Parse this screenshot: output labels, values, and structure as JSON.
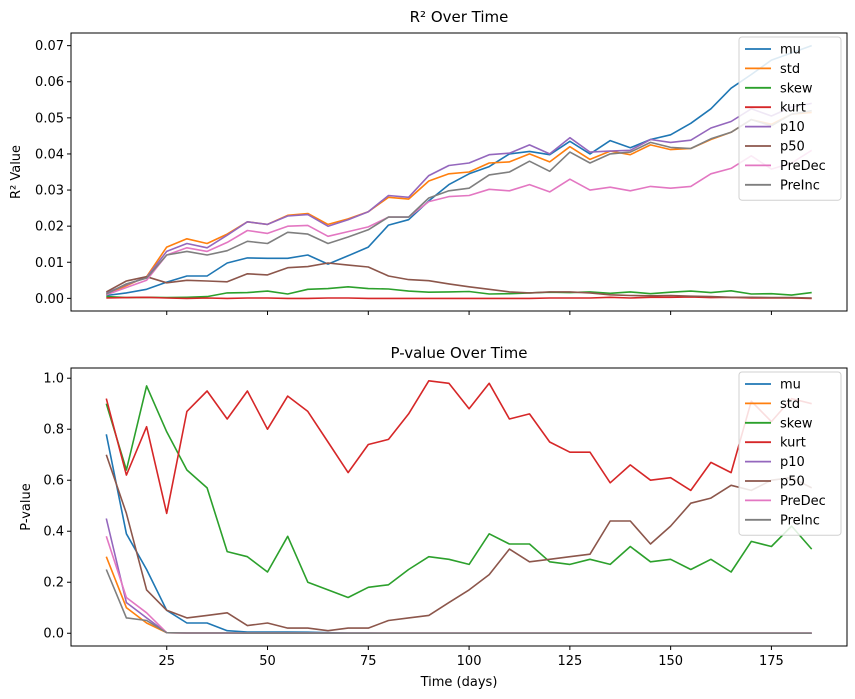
{
  "chart_data": {
    "type": "line",
    "shared_xlabel": "Time (days)",
    "x": [
      10,
      15,
      20,
      25,
      30,
      35,
      40,
      45,
      50,
      55,
      60,
      65,
      70,
      75,
      80,
      85,
      90,
      95,
      100,
      105,
      110,
      115,
      120,
      125,
      130,
      135,
      140,
      145,
      150,
      155,
      160,
      165,
      170,
      175,
      180,
      185
    ],
    "xticks": [
      25,
      50,
      75,
      100,
      125,
      150,
      175
    ],
    "xlim": [
      1.25,
      193.75
    ],
    "legend_placement": "top-right",
    "grid": false,
    "series_colors": {
      "mu": "#1f77b4",
      "std": "#ff7f0e",
      "skew": "#2ca02c",
      "kurt": "#d62728",
      "p10": "#9467bd",
      "p50": "#8c564b",
      "PreDec": "#e377c2",
      "PreInc": "#7f7f7f"
    },
    "legend_order": [
      "mu",
      "std",
      "skew",
      "kurt",
      "p10",
      "p50",
      "PreDec",
      "PreInc"
    ],
    "panels": [
      {
        "title": "R² Over Time",
        "ylabel": "R² Value",
        "ylim": [
          -0.0035,
          0.0735
        ],
        "yticks": [
          0.0,
          0.01,
          0.02,
          0.03,
          0.04,
          0.05,
          0.06,
          0.07
        ],
        "ytick_labels": [
          "0.00",
          "0.01",
          "0.02",
          "0.03",
          "0.04",
          "0.05",
          "0.06",
          "0.07"
        ],
        "series": [
          {
            "name": "mu",
            "values": [
              0.0008,
              0.0015,
              0.0025,
              0.0045,
              0.0062,
              0.0062,
              0.0098,
              0.0112,
              0.0111,
              0.0111,
              0.012,
              0.0095,
              0.0118,
              0.0142,
              0.0203,
              0.0218,
              0.027,
              0.0315,
              0.0345,
              0.0365,
              0.04,
              0.0407,
              0.0398,
              0.0435,
              0.04,
              0.0437,
              0.0417,
              0.044,
              0.0453,
              0.0485,
              0.0525,
              0.0582,
              0.062,
              0.066,
              0.068,
              0.07
            ]
          },
          {
            "name": "std",
            "values": [
              0.001,
              0.0035,
              0.006,
              0.0142,
              0.0165,
              0.0152,
              0.0178,
              0.0212,
              0.0205,
              0.023,
              0.0235,
              0.0205,
              0.022,
              0.024,
              0.028,
              0.0275,
              0.0325,
              0.0345,
              0.035,
              0.0375,
              0.0378,
              0.04,
              0.0378,
              0.042,
              0.0385,
              0.0408,
              0.0398,
              0.0425,
              0.0412,
              0.0415,
              0.044,
              0.046,
              0.0495,
              0.0482,
              0.051,
              0.0515
            ]
          },
          {
            "name": "skew",
            "values": [
              0.0005,
              0.0002,
              0.0003,
              0.0002,
              0.0003,
              0.0005,
              0.0015,
              0.0016,
              0.002,
              0.0012,
              0.0025,
              0.0027,
              0.0032,
              0.0027,
              0.0026,
              0.002,
              0.0017,
              0.0018,
              0.0019,
              0.0012,
              0.0013,
              0.0015,
              0.0017,
              0.0016,
              0.0018,
              0.0014,
              0.0018,
              0.0013,
              0.0017,
              0.002,
              0.0016,
              0.0021,
              0.0012,
              0.0013,
              0.0009,
              0.0016
            ]
          },
          {
            "name": "kurt",
            "values": [
              0.0001,
              0.0002,
              0.0003,
              0.0001,
              0.0,
              0.0001,
              0.0,
              0.0001,
              0.0001,
              0.0,
              0.0,
              0.0001,
              0.0001,
              0.0,
              0.0,
              0.0,
              0.0,
              0.0,
              0.0,
              0.0,
              0.0,
              0.0,
              0.0001,
              0.0001,
              0.0001,
              0.0003,
              0.0001,
              0.0003,
              0.0003,
              0.0004,
              0.0002,
              0.0003,
              0.0001,
              0.0001,
              0.0001,
              0.0
            ]
          },
          {
            "name": "p10",
            "values": [
              0.0015,
              0.0038,
              0.0058,
              0.013,
              0.0152,
              0.014,
              0.0175,
              0.0212,
              0.0205,
              0.0228,
              0.0232,
              0.02,
              0.0218,
              0.024,
              0.0285,
              0.028,
              0.034,
              0.0368,
              0.0375,
              0.0398,
              0.0402,
              0.0425,
              0.04,
              0.0445,
              0.0405,
              0.0408,
              0.041,
              0.044,
              0.0432,
              0.0438,
              0.0472,
              0.049,
              0.0525,
              0.0505,
              0.053,
              0.054
            ]
          },
          {
            "name": "p50",
            "values": [
              0.0018,
              0.0048,
              0.006,
              0.0043,
              0.005,
              0.0048,
              0.0046,
              0.0068,
              0.0065,
              0.0085,
              0.0088,
              0.0098,
              0.0092,
              0.0087,
              0.0062,
              0.0052,
              0.0049,
              0.004,
              0.0032,
              0.0025,
              0.0018,
              0.0015,
              0.0018,
              0.0018,
              0.0015,
              0.001,
              0.0008,
              0.0007,
              0.0008,
              0.0006,
              0.0005,
              0.0003,
              0.0003,
              0.0002,
              0.0002,
              0.0001
            ]
          },
          {
            "name": "PreDec",
            "values": [
              0.001,
              0.003,
              0.005,
              0.012,
              0.014,
              0.013,
              0.0155,
              0.0188,
              0.018,
              0.02,
              0.0202,
              0.0172,
              0.0185,
              0.0198,
              0.0225,
              0.0225,
              0.0268,
              0.0282,
              0.0285,
              0.0302,
              0.0298,
              0.0315,
              0.0295,
              0.033,
              0.03,
              0.0308,
              0.0298,
              0.031,
              0.0305,
              0.031,
              0.0345,
              0.036,
              0.0395,
              0.0358,
              0.0375,
              0.041
            ]
          },
          {
            "name": "PreInc",
            "values": [
              0.0012,
              0.004,
              0.0056,
              0.012,
              0.013,
              0.012,
              0.0132,
              0.0158,
              0.0152,
              0.0183,
              0.0178,
              0.0152,
              0.017,
              0.019,
              0.0225,
              0.0225,
              0.0278,
              0.0298,
              0.0305,
              0.0342,
              0.035,
              0.038,
              0.0352,
              0.0405,
              0.0375,
              0.04,
              0.0405,
              0.0432,
              0.0418,
              0.0415,
              0.0442,
              0.046,
              0.0495,
              0.0478,
              0.051,
              0.052
            ]
          }
        ]
      },
      {
        "title": "P-value Over Time",
        "ylabel": "P-value",
        "ylim": [
          -0.05,
          1.04
        ],
        "yticks": [
          0.0,
          0.2,
          0.4,
          0.6,
          0.8,
          1.0
        ],
        "ytick_labels": [
          "0.0",
          "0.2",
          "0.4",
          "0.6",
          "0.8",
          "1.0"
        ],
        "series": [
          {
            "name": "mu",
            "values": [
              0.78,
              0.39,
              0.25,
              0.09,
              0.04,
              0.04,
              0.01,
              0.005,
              0.005,
              0.005,
              0.004,
              0.002,
              0.001,
              0.001,
              0,
              0,
              0,
              0,
              0,
              0,
              0,
              0,
              0,
              0,
              0,
              0,
              0,
              0,
              0,
              0,
              0,
              0,
              0,
              0,
              0,
              0
            ]
          },
          {
            "name": "std",
            "values": [
              0.3,
              0.1,
              0.04,
              0.002,
              0.001,
              0.001,
              0.001,
              0,
              0,
              0,
              0,
              0,
              0,
              0,
              0,
              0,
              0,
              0,
              0,
              0,
              0,
              0,
              0,
              0,
              0,
              0,
              0,
              0,
              0,
              0,
              0,
              0,
              0,
              0,
              0,
              0
            ]
          },
          {
            "name": "skew",
            "values": [
              0.9,
              0.64,
              0.97,
              0.79,
              0.64,
              0.57,
              0.32,
              0.3,
              0.24,
              0.38,
              0.2,
              0.17,
              0.14,
              0.18,
              0.19,
              0.25,
              0.3,
              0.29,
              0.27,
              0.39,
              0.35,
              0.35,
              0.28,
              0.27,
              0.29,
              0.27,
              0.34,
              0.28,
              0.29,
              0.25,
              0.29,
              0.24,
              0.36,
              0.34,
              0.42,
              0.33
            ]
          },
          {
            "name": "kurt",
            "values": [
              0.92,
              0.62,
              0.81,
              0.47,
              0.87,
              0.95,
              0.84,
              0.95,
              0.8,
              0.93,
              0.87,
              0.75,
              0.63,
              0.74,
              0.76,
              0.86,
              0.99,
              0.98,
              0.88,
              0.98,
              0.84,
              0.86,
              0.75,
              0.71,
              0.71,
              0.59,
              0.66,
              0.6,
              0.61,
              0.56,
              0.67,
              0.63,
              0.91,
              0.83,
              0.92,
              0.9
            ]
          },
          {
            "name": "p10",
            "values": [
              0.45,
              0.12,
              0.06,
              0.002,
              0.001,
              0.001,
              0.001,
              0,
              0,
              0,
              0,
              0,
              0,
              0,
              0,
              0,
              0,
              0,
              0,
              0,
              0,
              0,
              0,
              0,
              0,
              0,
              0,
              0,
              0,
              0,
              0,
              0,
              0,
              0,
              0,
              0
            ]
          },
          {
            "name": "p50",
            "values": [
              0.7,
              0.47,
              0.17,
              0.09,
              0.06,
              0.07,
              0.08,
              0.03,
              0.04,
              0.02,
              0.02,
              0.01,
              0.02,
              0.02,
              0.05,
              0.06,
              0.07,
              0.12,
              0.17,
              0.23,
              0.33,
              0.28,
              0.29,
              0.3,
              0.31,
              0.44,
              0.44,
              0.35,
              0.42,
              0.51,
              0.53,
              0.58,
              0.56,
              0.6,
              0.61,
              0.57
            ]
          },
          {
            "name": "PreDec",
            "values": [
              0.38,
              0.14,
              0.08,
              0.002,
              0.001,
              0.001,
              0.001,
              0,
              0,
              0,
              0,
              0,
              0,
              0,
              0,
              0,
              0,
              0,
              0,
              0,
              0,
              0,
              0,
              0,
              0,
              0,
              0,
              0,
              0,
              0,
              0,
              0,
              0,
              0,
              0,
              0
            ]
          },
          {
            "name": "PreInc",
            "values": [
              0.25,
              0.06,
              0.05,
              0.002,
              0.001,
              0.001,
              0.001,
              0,
              0,
              0,
              0,
              0,
              0,
              0,
              0,
              0,
              0,
              0,
              0,
              0,
              0,
              0,
              0,
              0,
              0,
              0,
              0,
              0,
              0,
              0,
              0,
              0,
              0,
              0,
              0,
              0
            ]
          }
        ]
      }
    ]
  }
}
